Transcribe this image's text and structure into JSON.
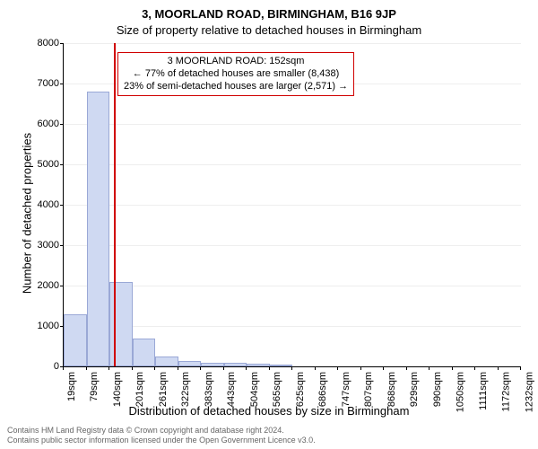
{
  "title_line1": "3, MOORLAND ROAD, BIRMINGHAM, B16 9JP",
  "title_line2": "Size of property relative to detached houses in Birmingham",
  "y_label": "Number of detached properties",
  "x_label": "Distribution of detached houses by size in Birmingham",
  "chart": {
    "type": "histogram",
    "ylim": [
      0,
      8000
    ],
    "yticks": [
      0,
      1000,
      2000,
      3000,
      4000,
      5000,
      6000,
      7000,
      8000
    ],
    "xtick_labels": [
      "19sqm",
      "79sqm",
      "140sqm",
      "201sqm",
      "261sqm",
      "322sqm",
      "383sqm",
      "443sqm",
      "504sqm",
      "565sqm",
      "625sqm",
      "686sqm",
      "747sqm",
      "807sqm",
      "868sqm",
      "929sqm",
      "990sqm",
      "1050sqm",
      "1111sqm",
      "1172sqm",
      "1232sqm"
    ],
    "bar_values": [
      1300,
      6800,
      2100,
      700,
      250,
      130,
      100,
      80,
      60,
      40
    ],
    "bar_color": "#cfd9f2",
    "bar_border_color": "#9aa8d6",
    "grid_color": "#eeeeee",
    "marker": {
      "value_sqm": 152,
      "color": "#d00000"
    }
  },
  "annotation": {
    "line1": "3 MOORLAND ROAD: 152sqm",
    "line2": "← 77% of detached houses are smaller (8,438)",
    "line3": "23% of semi-detached houses are larger (2,571) →"
  },
  "footer": {
    "line1": "Contains HM Land Registry data © Crown copyright and database right 2024.",
    "line2": "Contains public sector information licensed under the Open Government Licence v3.0."
  },
  "fonts": {
    "title_fontsize": 13,
    "label_fontsize": 13,
    "tick_fontsize": 11,
    "annotation_fontsize": 11,
    "footer_fontsize": 9
  }
}
